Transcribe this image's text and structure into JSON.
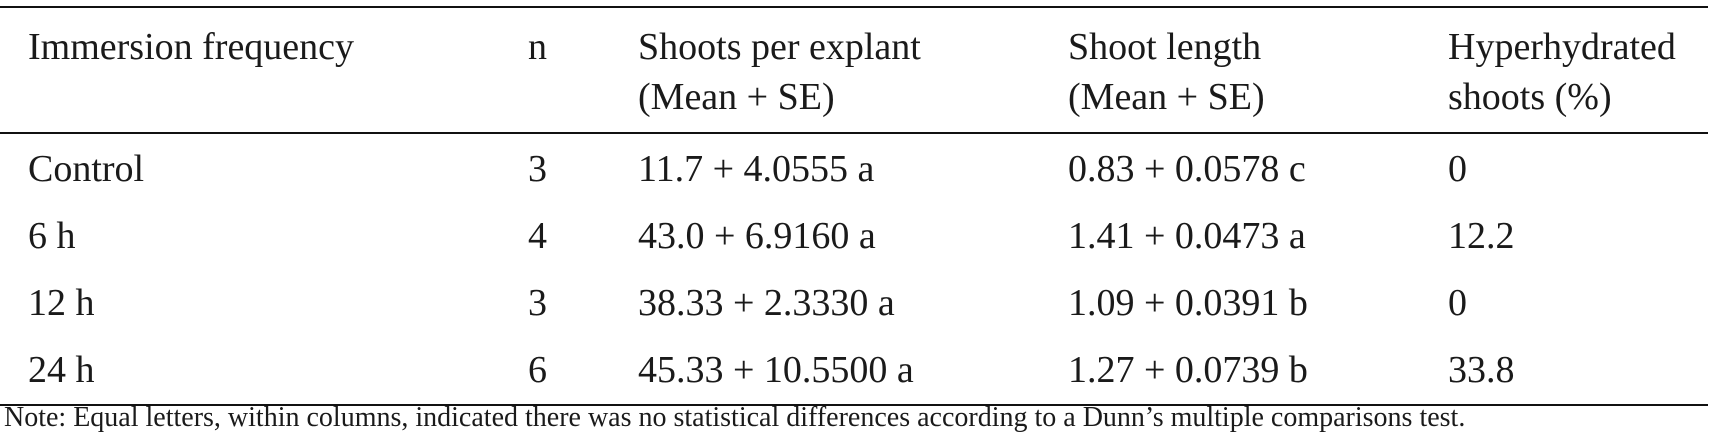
{
  "table": {
    "headers": [
      {
        "line1": "Immersion frequency",
        "line2": ""
      },
      {
        "line1": "n",
        "line2": ""
      },
      {
        "line1": "Shoots per explant",
        "line2": "(Mean + SE)"
      },
      {
        "line1": "Shoot length",
        "line2": "(Mean + SE)"
      },
      {
        "line1": "Hyperhydrated",
        "line2": "shoots (%)"
      }
    ],
    "rows": [
      [
        "Control",
        "3",
        "11.7 + 4.0555 a",
        "0.83 + 0.0578 c",
        "0"
      ],
      [
        "6 h",
        "4",
        "43.0 + 6.9160 a",
        "1.41 + 0.0473 a",
        "12.2"
      ],
      [
        "12 h",
        "3",
        "38.33 + 2.3330 a",
        "1.09 + 0.0391 b",
        "0"
      ],
      [
        "24 h",
        "6",
        "45.33 + 10.5500 a",
        "1.27 + 0.0739 b",
        "33.8"
      ]
    ]
  },
  "note": "Note: Equal letters, within columns, indicated there was no statistical differences according to a Dunn’s multiple comparisons test."
}
